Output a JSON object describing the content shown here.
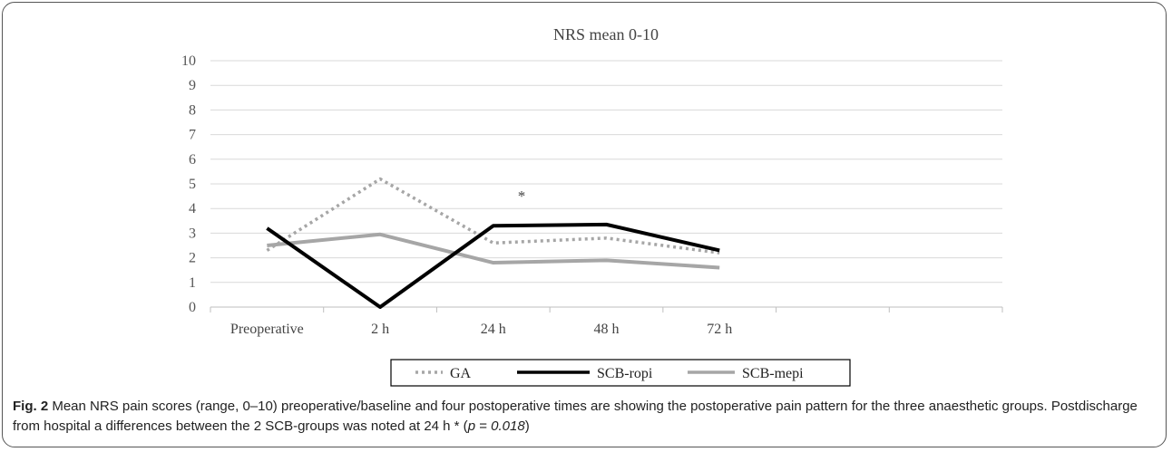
{
  "chart_data": {
    "type": "line",
    "title": "NRS mean 0-10",
    "xlabel": "",
    "ylabel": "",
    "categories": [
      "Preoperative",
      "2 h",
      "24 h",
      "48 h",
      "72 h"
    ],
    "ylim": [
      0,
      10
    ],
    "yticks": [
      "0",
      "1",
      "2",
      "3",
      "4",
      "5",
      "6",
      "7",
      "8",
      "9",
      "10"
    ],
    "grid": true,
    "legend_position": "bottom",
    "annotation": "*",
    "series": [
      {
        "name": "GA",
        "values": [
          2.3,
          5.2,
          2.6,
          2.8,
          2.2
        ],
        "color": "#a6a6a6",
        "style": "dotted"
      },
      {
        "name": "SCB-ropi",
        "values": [
          3.2,
          0.0,
          3.3,
          3.35,
          2.3
        ],
        "color": "#000000",
        "style": "solid"
      },
      {
        "name": "SCB-mepi",
        "values": [
          2.5,
          2.95,
          1.8,
          1.9,
          1.6
        ],
        "color": "#a6a6a6",
        "style": "solid"
      }
    ]
  },
  "caption": {
    "label": "Fig. 2",
    "text_part1": "Mean NRS pain scores (range, 0–10) preoperative/baseline and four postoperative times are showing the postoperative pain pattern for the three anaesthetic groups. Postdischarge from hospital a differences between the 2 SCB-groups was noted at 24 h * (",
    "p_symbol": "p",
    "p_eq": " = ",
    "p_value": "0.018",
    "close": ")"
  }
}
